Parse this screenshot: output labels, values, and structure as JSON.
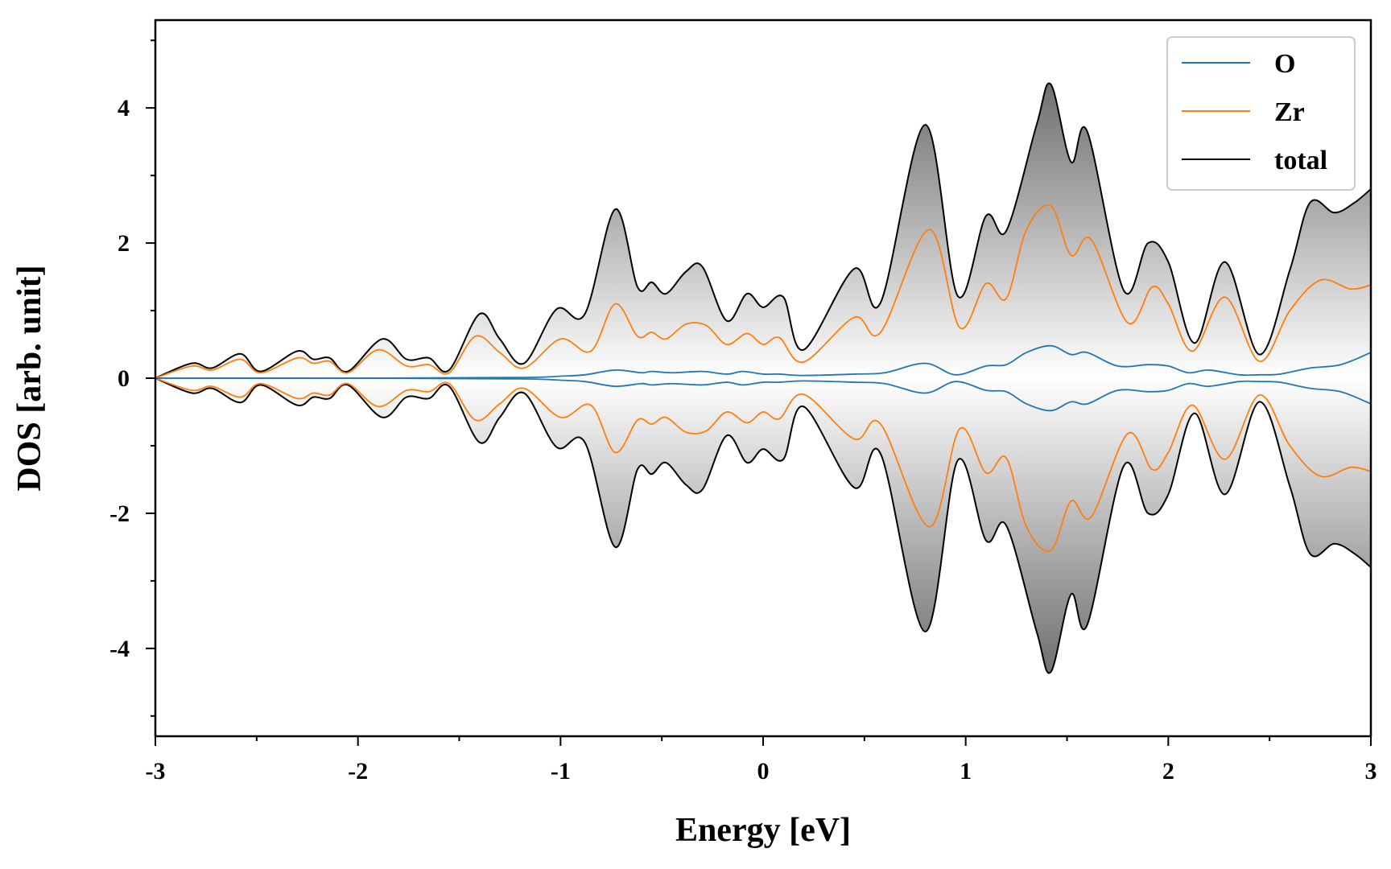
{
  "chart_data": {
    "type": "area",
    "xlabel": "Energy [eV]",
    "ylabel": "DOS [arb. unit]",
    "xlim": [
      -3,
      3
    ],
    "ylim": [
      -5.3,
      5.3
    ],
    "xticks": [
      -3,
      -2,
      -1,
      0,
      1,
      2,
      3
    ],
    "xtick_labels": [
      "-3",
      "-2",
      "-1",
      "0",
      "1",
      "2",
      "3"
    ],
    "yticks": [
      -4,
      -2,
      0,
      2,
      4
    ],
    "ytick_labels": [
      "-4",
      "-2",
      "0",
      "2",
      "4"
    ],
    "x_minor_step": 0.5,
    "y_minor_step": 1,
    "grid": false,
    "legend_position": "top-right",
    "mirrored": true,
    "fill": "gradient under total and Zr curves, darker with larger DOS",
    "colors": {
      "O": "#1f77b4",
      "Zr": "#ff7f0e",
      "total": "#000000",
      "total_fill": "#7a7a7a",
      "zr_fill": "#c8916a"
    },
    "series": [
      {
        "name": "O",
        "x": [
          -3.0,
          -2.0,
          -1.2,
          -1.0,
          -0.88,
          -0.73,
          -0.6,
          -0.55,
          -0.45,
          -0.3,
          -0.18,
          -0.1,
          0.0,
          0.08,
          0.2,
          0.45,
          0.6,
          0.8,
          0.95,
          1.1,
          1.2,
          1.3,
          1.42,
          1.52,
          1.6,
          1.75,
          1.9,
          2.0,
          2.1,
          2.2,
          2.35,
          2.45,
          2.55,
          2.7,
          2.85,
          3.0
        ],
        "values": [
          0.0,
          0.0,
          0.01,
          0.03,
          0.05,
          0.12,
          0.08,
          0.1,
          0.08,
          0.1,
          0.06,
          0.1,
          0.06,
          0.06,
          0.04,
          0.06,
          0.08,
          0.22,
          0.05,
          0.18,
          0.2,
          0.38,
          0.48,
          0.35,
          0.38,
          0.18,
          0.2,
          0.18,
          0.08,
          0.12,
          0.05,
          0.05,
          0.06,
          0.15,
          0.2,
          0.38
        ]
      },
      {
        "name": "Zr",
        "x": [
          -3.0,
          -2.82,
          -2.72,
          -2.58,
          -2.48,
          -2.3,
          -2.22,
          -2.14,
          -2.05,
          -1.9,
          -1.76,
          -1.65,
          -1.55,
          -1.42,
          -1.3,
          -1.18,
          -1.0,
          -0.85,
          -0.73,
          -0.62,
          -0.55,
          -0.48,
          -0.38,
          -0.28,
          -0.18,
          -0.08,
          0.0,
          0.08,
          0.2,
          0.45,
          0.58,
          0.82,
          0.97,
          1.1,
          1.2,
          1.3,
          1.42,
          1.52,
          1.62,
          1.8,
          1.92,
          2.0,
          2.12,
          2.28,
          2.45,
          2.6,
          2.75,
          2.9,
          3.0
        ],
        "values": [
          0.0,
          0.18,
          0.12,
          0.28,
          0.08,
          0.3,
          0.22,
          0.25,
          0.08,
          0.42,
          0.18,
          0.2,
          0.08,
          0.62,
          0.38,
          0.15,
          0.58,
          0.4,
          1.1,
          0.62,
          0.68,
          0.58,
          0.8,
          0.78,
          0.5,
          0.66,
          0.5,
          0.6,
          0.24,
          0.9,
          0.68,
          2.2,
          0.75,
          1.4,
          1.18,
          2.2,
          2.55,
          1.82,
          2.05,
          0.82,
          1.35,
          1.1,
          0.4,
          1.2,
          0.25,
          1.0,
          1.45,
          1.32,
          1.38
        ]
      },
      {
        "name": "total",
        "x": [
          -3.0,
          -2.82,
          -2.72,
          -2.58,
          -2.48,
          -2.3,
          -2.22,
          -2.14,
          -2.05,
          -1.88,
          -1.76,
          -1.65,
          -1.55,
          -1.4,
          -1.3,
          -1.18,
          -1.02,
          -0.88,
          -0.73,
          -0.62,
          -0.55,
          -0.48,
          -0.38,
          -0.3,
          -0.18,
          -0.08,
          0.0,
          0.1,
          0.2,
          0.45,
          0.58,
          0.8,
          0.96,
          1.1,
          1.2,
          1.35,
          1.42,
          1.52,
          1.6,
          1.78,
          1.9,
          2.0,
          2.13,
          2.28,
          2.45,
          2.6,
          2.7,
          2.82,
          2.92,
          3.0
        ],
        "values": [
          0.0,
          0.22,
          0.15,
          0.36,
          0.1,
          0.4,
          0.28,
          0.3,
          0.1,
          0.58,
          0.28,
          0.3,
          0.12,
          0.95,
          0.58,
          0.22,
          1.02,
          0.95,
          2.5,
          1.35,
          1.42,
          1.25,
          1.58,
          1.65,
          0.85,
          1.25,
          1.05,
          1.2,
          0.42,
          1.62,
          1.12,
          3.75,
          1.22,
          2.4,
          2.18,
          3.75,
          4.35,
          3.2,
          3.65,
          1.3,
          2.0,
          1.72,
          0.52,
          1.72,
          0.35,
          1.6,
          2.6,
          2.45,
          2.6,
          2.8
        ]
      }
    ]
  }
}
